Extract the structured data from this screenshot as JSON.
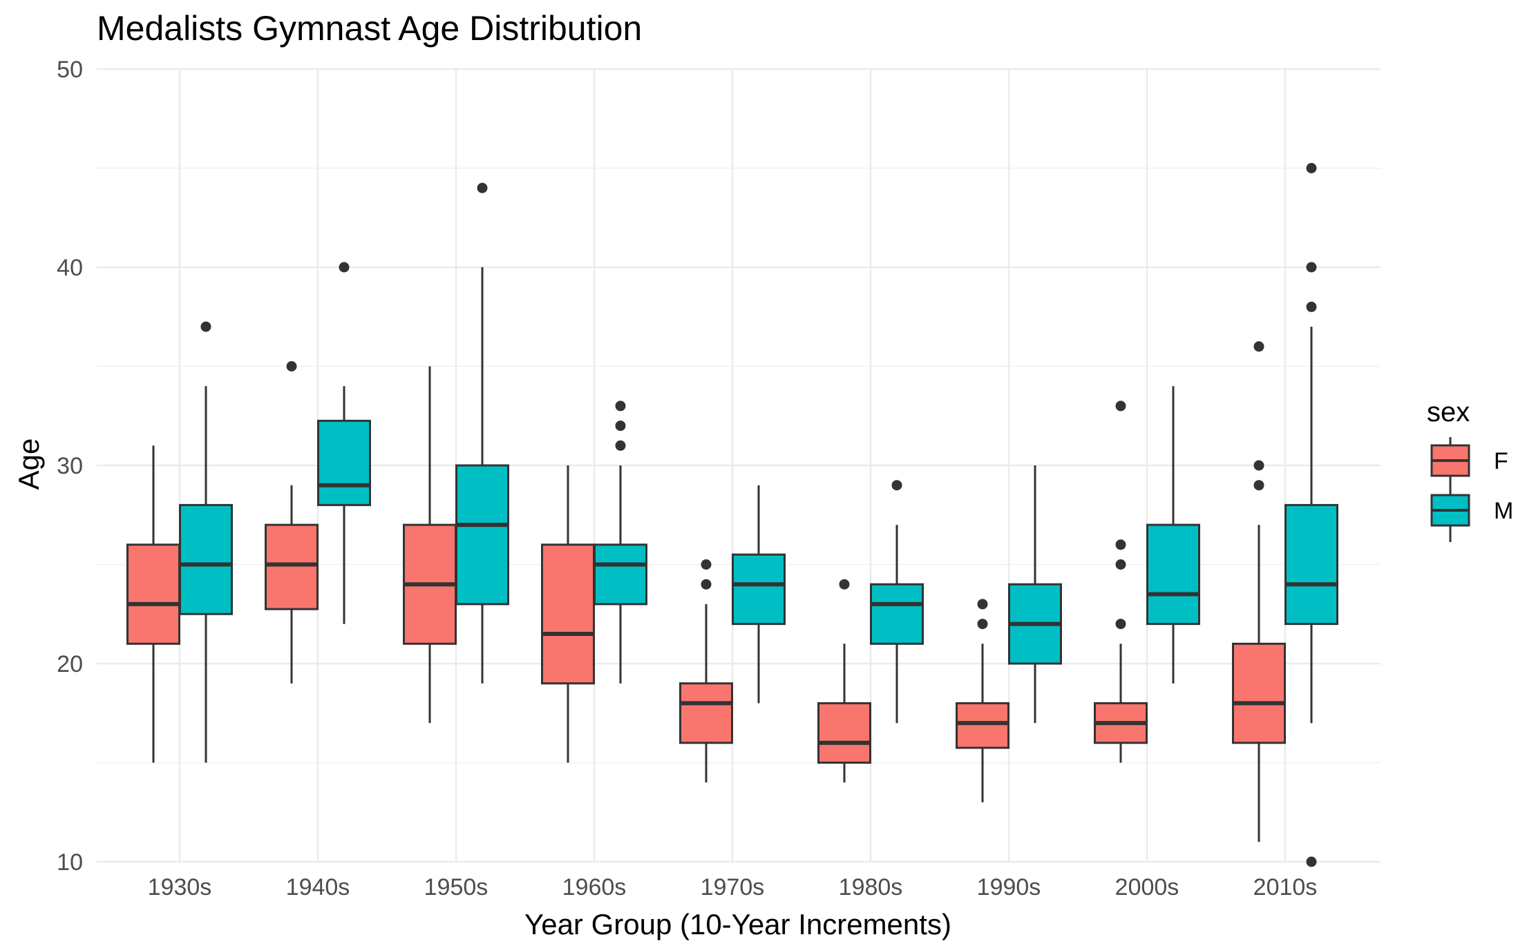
{
  "chart_data": {
    "type": "boxplot",
    "title": "Medalists Gymnast Age Distribution",
    "xlabel": "Year Group (10-Year Increments)",
    "ylabel": "Age",
    "ylim": [
      10,
      50
    ],
    "yticks": [
      10,
      20,
      30,
      40,
      50
    ],
    "categories": [
      "1930s",
      "1940s",
      "1950s",
      "1960s",
      "1970s",
      "1980s",
      "1990s",
      "2000s",
      "2010s"
    ],
    "grid": true,
    "legend": {
      "title": "sex",
      "position": "right",
      "entries": [
        "F",
        "M"
      ]
    },
    "series": [
      {
        "name": "F",
        "color": "#F8766D",
        "boxes": [
          {
            "whisker_low": 15,
            "q1": 21,
            "median": 23,
            "q3": 26,
            "whisker_high": 31,
            "outliers": []
          },
          {
            "whisker_low": 19,
            "q1": 22.75,
            "median": 25,
            "q3": 27,
            "whisker_high": 29,
            "outliers": [
              35
            ]
          },
          {
            "whisker_low": 17,
            "q1": 21,
            "median": 24,
            "q3": 27,
            "whisker_high": 35,
            "outliers": []
          },
          {
            "whisker_low": 15,
            "q1": 19,
            "median": 21.5,
            "q3": 26,
            "whisker_high": 30,
            "outliers": []
          },
          {
            "whisker_low": 14,
            "q1": 16,
            "median": 18,
            "q3": 19,
            "whisker_high": 23,
            "outliers": [
              24,
              25
            ]
          },
          {
            "whisker_low": 14,
            "q1": 15,
            "median": 16,
            "q3": 18,
            "whisker_high": 21,
            "outliers": [
              24
            ]
          },
          {
            "whisker_low": 13,
            "q1": 15.75,
            "median": 17,
            "q3": 18,
            "whisker_high": 21,
            "outliers": [
              22,
              23
            ]
          },
          {
            "whisker_low": 15,
            "q1": 16,
            "median": 17,
            "q3": 18,
            "whisker_high": 21,
            "outliers": [
              22,
              25,
              26,
              33
            ]
          },
          {
            "whisker_low": 11,
            "q1": 16,
            "median": 18,
            "q3": 21,
            "whisker_high": 27,
            "outliers": [
              29,
              30,
              36
            ]
          }
        ]
      },
      {
        "name": "M",
        "color": "#00BFC4",
        "boxes": [
          {
            "whisker_low": 15,
            "q1": 22.5,
            "median": 25,
            "q3": 28,
            "whisker_high": 34,
            "outliers": [
              37
            ]
          },
          {
            "whisker_low": 22,
            "q1": 28,
            "median": 29,
            "q3": 32.25,
            "whisker_high": 34,
            "outliers": [
              40
            ]
          },
          {
            "whisker_low": 19,
            "q1": 23,
            "median": 27,
            "q3": 30,
            "whisker_high": 40,
            "outliers": [
              44
            ]
          },
          {
            "whisker_low": 19,
            "q1": 23,
            "median": 25,
            "q3": 26,
            "whisker_high": 30,
            "outliers": [
              31,
              32,
              33
            ]
          },
          {
            "whisker_low": 18,
            "q1": 22,
            "median": 24,
            "q3": 25.5,
            "whisker_high": 29,
            "outliers": []
          },
          {
            "whisker_low": 17,
            "q1": 21,
            "median": 23,
            "q3": 24,
            "whisker_high": 27,
            "outliers": [
              29
            ]
          },
          {
            "whisker_low": 17,
            "q1": 20,
            "median": 22,
            "q3": 24,
            "whisker_high": 30,
            "outliers": []
          },
          {
            "whisker_low": 19,
            "q1": 22,
            "median": 23.5,
            "q3": 27,
            "whisker_high": 34,
            "outliers": []
          },
          {
            "whisker_low": 17,
            "q1": 22,
            "median": 24,
            "q3": 28,
            "whisker_high": 37,
            "outliers": [
              10,
              38,
              40,
              45
            ]
          }
        ]
      }
    ]
  }
}
